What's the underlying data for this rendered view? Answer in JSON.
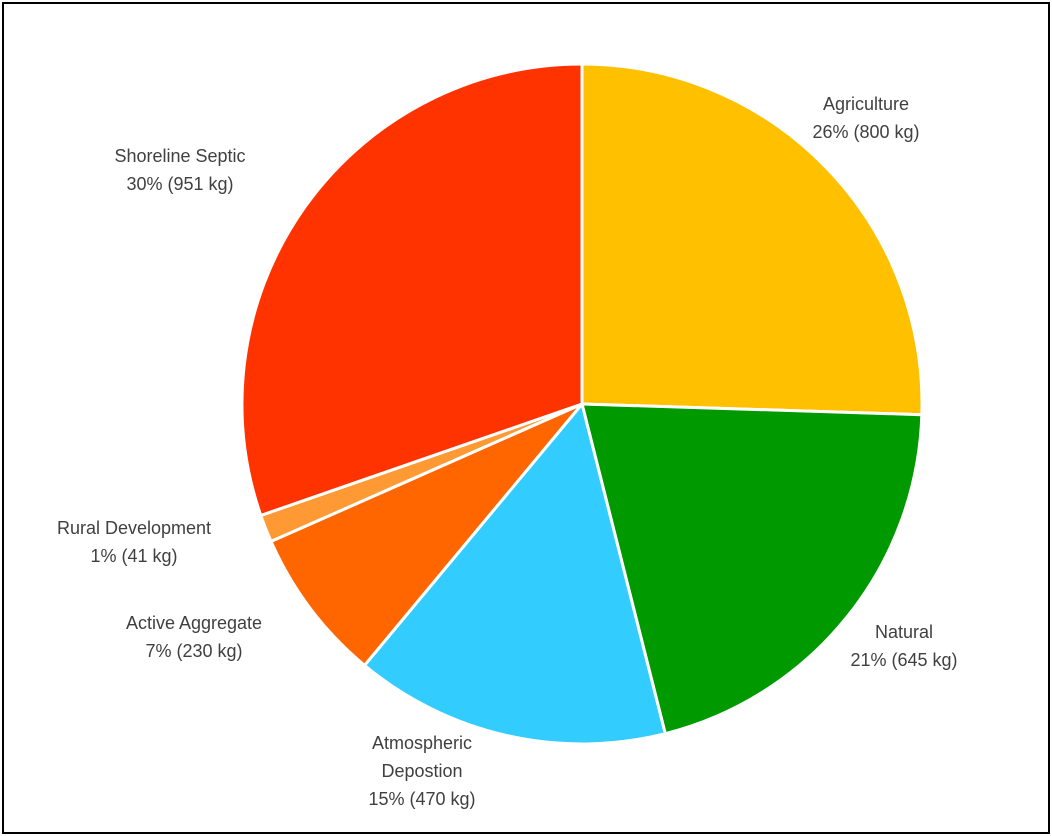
{
  "chart_data": {
    "type": "pie",
    "title": "",
    "unit": "kg",
    "start_angle_deg": 0,
    "direction": "clockwise",
    "slices": [
      {
        "name": "Agriculture",
        "lines": [
          "Agriculture"
        ],
        "value": 800,
        "percent_label": "26% (800 kg)",
        "color": "#FFC000"
      },
      {
        "name": "Natural",
        "lines": [
          "Natural"
        ],
        "value": 645,
        "percent_label": "21% (645 kg)",
        "color": "#009900"
      },
      {
        "name": "Atmospheric Depostion",
        "lines": [
          "Atmospheric",
          "Depostion"
        ],
        "value": 470,
        "percent_label": "15% (470 kg)",
        "color": "#33CCFF"
      },
      {
        "name": "Active Aggregate",
        "lines": [
          "Active Aggregate"
        ],
        "value": 230,
        "percent_label": "7% (230 kg)",
        "color": "#FF6600"
      },
      {
        "name": "Rural Development",
        "lines": [
          "Rural Development"
        ],
        "value": 41,
        "percent_label": "1% (41 kg)",
        "color": "#FF9933"
      },
      {
        "name": "Shoreline Septic",
        "lines": [
          "Shoreline Septic"
        ],
        "value": 951,
        "percent_label": "30% (951 kg)",
        "color": "#FF3300"
      }
    ],
    "slice_border_color": "#FFFFFF",
    "label_color": "#404040",
    "frame_border_color": "#000000"
  }
}
